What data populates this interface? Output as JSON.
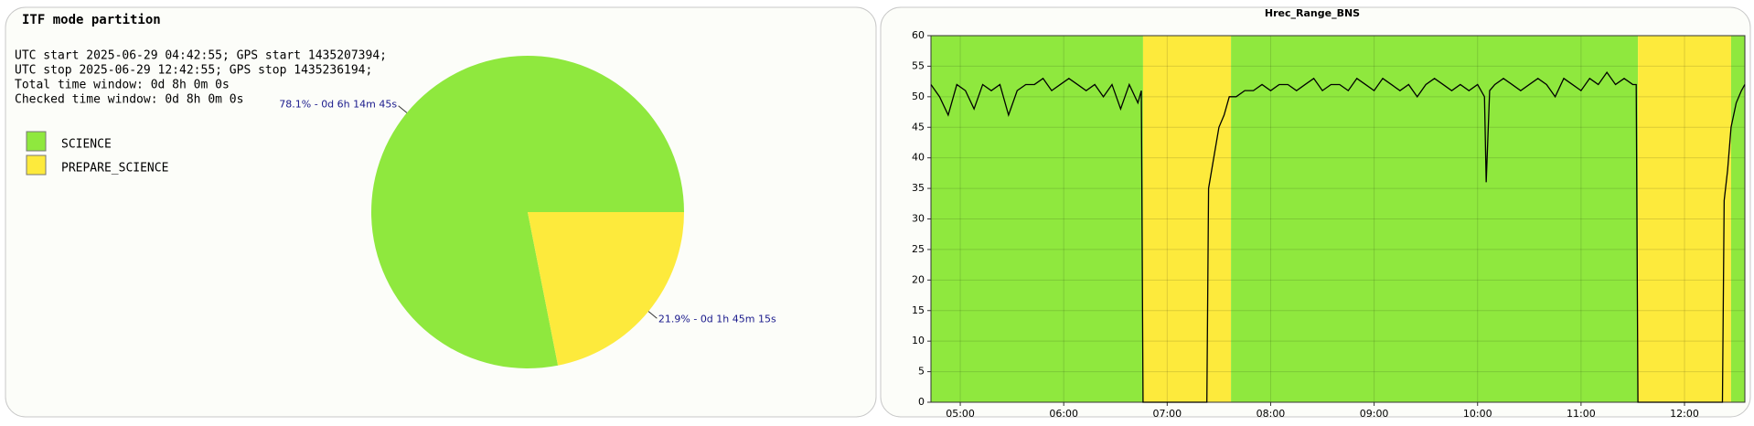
{
  "chart_data": [
    {
      "type": "pie",
      "title": "ITF mode partition",
      "text_lines": [
        "UTC start 2025-06-29 04:42:55; GPS start 1435207394;",
        "UTC stop 2025-06-29 12:42:55; GPS stop 1435236194;",
        "Total time window: 0d 8h 0m 0s",
        "Checked time window: 0d 8h 0m 0s"
      ],
      "categories": [
        "SCIENCE",
        "PREPARE_SCIENCE"
      ],
      "values": [
        78.1,
        21.9
      ],
      "value_labels": [
        "78.1% - 0d 6h 14m 45s",
        "21.9% - 0d 1h 45m 15s"
      ],
      "colors": [
        "#8fe83e",
        "#fdea3c"
      ]
    },
    {
      "type": "line",
      "title": "Hrec_Range_BNS",
      "x": [
        "04:43",
        "04:48",
        "04:53",
        "04:58",
        "05:03",
        "05:08",
        "05:13",
        "05:18",
        "05:23",
        "05:28",
        "05:33",
        "05:38",
        "05:43",
        "05:48",
        "05:53",
        "05:58",
        "06:03",
        "06:08",
        "06:13",
        "06:18",
        "06:23",
        "06:28",
        "06:33",
        "06:38",
        "06:43",
        "06:45",
        "06:46",
        "07:23",
        "07:24",
        "07:27",
        "07:30",
        "07:33",
        "07:36",
        "07:40",
        "07:45",
        "07:50",
        "07:55",
        "08:00",
        "08:05",
        "08:10",
        "08:15",
        "08:20",
        "08:25",
        "08:30",
        "08:35",
        "08:40",
        "08:45",
        "08:50",
        "08:55",
        "09:00",
        "09:05",
        "09:10",
        "09:15",
        "09:20",
        "09:25",
        "09:30",
        "09:35",
        "09:40",
        "09:45",
        "09:50",
        "09:55",
        "10:00",
        "10:04",
        "10:05",
        "10:07",
        "10:10",
        "10:15",
        "10:20",
        "10:25",
        "10:30",
        "10:35",
        "10:40",
        "10:45",
        "10:50",
        "10:55",
        "11:00",
        "11:05",
        "11:10",
        "11:15",
        "11:20",
        "11:25",
        "11:30",
        "11:32",
        "11:33",
        "12:22",
        "12:23",
        "12:25",
        "12:27",
        "12:30",
        "12:33",
        "12:35"
      ],
      "series": [
        {
          "color": "#000000",
          "values": [
            52,
            50,
            47,
            52,
            51,
            48,
            52,
            51,
            52,
            47,
            51,
            52,
            52,
            53,
            51,
            52,
            53,
            52,
            51,
            52,
            50,
            52,
            48,
            52,
            49,
            51,
            0,
            0,
            35,
            40,
            45,
            47,
            50,
            50,
            51,
            51,
            52,
            51,
            52,
            52,
            51,
            52,
            53,
            51,
            52,
            52,
            51,
            53,
            52,
            51,
            53,
            52,
            51,
            52,
            50,
            52,
            53,
            52,
            51,
            52,
            51,
            52,
            50,
            36,
            51,
            52,
            53,
            52,
            51,
            52,
            53,
            52,
            50,
            53,
            52,
            51,
            53,
            52,
            54,
            52,
            53,
            52,
            52,
            0,
            0,
            33,
            38,
            45,
            49,
            51,
            52
          ]
        }
      ],
      "bands": [
        {
          "from": "04:43",
          "to": "06:46",
          "color": "#8fe83e"
        },
        {
          "from": "06:46",
          "to": "07:37",
          "color": "#fdea3c"
        },
        {
          "from": "07:37",
          "to": "11:33",
          "color": "#8fe83e"
        },
        {
          "from": "11:33",
          "to": "12:27",
          "color": "#fdea3c"
        },
        {
          "from": "12:27",
          "to": "12:35",
          "color": "#8fe83e"
        }
      ],
      "xlim": [
        "04:43",
        "12:35"
      ],
      "xticks": [
        "05:00",
        "06:00",
        "07:00",
        "08:00",
        "09:00",
        "10:00",
        "11:00",
        "12:00"
      ],
      "ylim": [
        0,
        60
      ],
      "yticks": [
        0,
        5,
        10,
        15,
        20,
        25,
        30,
        35,
        40,
        45,
        50,
        55,
        60
      ],
      "grid": true
    }
  ]
}
